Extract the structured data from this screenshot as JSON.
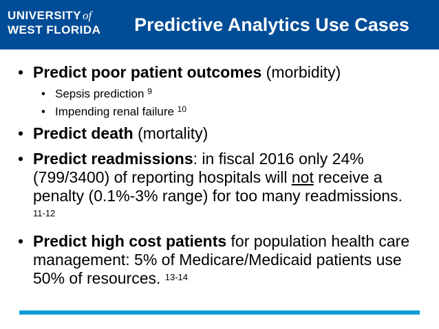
{
  "header": {
    "logo_line1": "UNIVERSITY",
    "logo_of": "of",
    "logo_line2": "WEST FLORIDA",
    "title": "Predictive Analytics Use Cases"
  },
  "bullets": [
    {
      "bold": "Predict poor patient outcomes",
      "rest": " (morbidity)",
      "subs": [
        {
          "text": "Sepsis prediction ",
          "ref": "9"
        },
        {
          "text": "Impending renal failure ",
          "ref": "10"
        }
      ]
    },
    {
      "bold": "Predict death",
      "rest": " (mortality)"
    },
    {
      "bold": "Predict readmissions",
      "rest_a": ": in fiscal 2016 only 24% (799/3400) of reporting hospitals will ",
      "underlined": "not",
      "rest_b": " receive a penalty (0.1%-3% range) for too many readmissions. ",
      "ref": "11-12"
    },
    {
      "bold": "Predict high cost patients",
      "rest": " for population health care management: 5% of Medicare/Medicaid patients use 50% of resources. ",
      "ref": "13-14"
    }
  ],
  "bullet_glyph": "•",
  "colors": {
    "header_bg": "#004c97",
    "footer_bar": "#0d9ad8"
  }
}
